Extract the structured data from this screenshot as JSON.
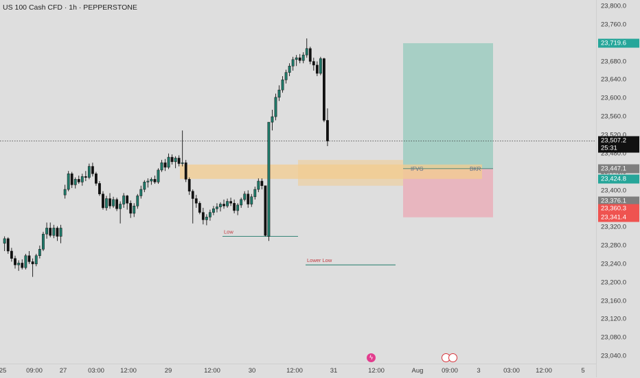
{
  "header": {
    "title": "US 100 Cash CFD · 1h · PEPPERSTONE"
  },
  "price_scale": {
    "ticks": [
      "23,800.0",
      "23,760.0",
      "23,720.0",
      "23,680.0",
      "23,640.0",
      "23,600.0",
      "23,560.0",
      "23,520.0",
      "23,480.0",
      "23,440.0",
      "23,400.0",
      "23,360.0",
      "23,320.0",
      "23,280.0",
      "23,240.0",
      "23,200.0",
      "23,160.0",
      "23,120.0",
      "23,080.0",
      "23,040.0"
    ],
    "badges": {
      "target": "23,719.6",
      "current_price": "23,507.2",
      "countdown": "25:31",
      "level_gray_1": "23,447.1",
      "level_green": "23,424.8",
      "level_gray_2": "23,376.1",
      "level_red_1": "23,360.3",
      "level_red_2": "23,341.4"
    }
  },
  "time_scale": {
    "ticks": [
      "25",
      "09:00",
      "27",
      "03:00",
      "12:00",
      "29",
      "12:00",
      "30",
      "12:00",
      "31",
      "12:00",
      "Aug",
      "09:00",
      "3",
      "03:00",
      "12:00",
      "5"
    ]
  },
  "annotations": {
    "ifvg": "IFVG",
    "bkr": "BKR",
    "low": "Low",
    "lower_low": "Lower Low"
  },
  "colors": {
    "bull": "#1f7a6a",
    "bear": "#111111",
    "target_zone": "#a7cfc5",
    "stop_zone": "#e8b6bf",
    "fvg_zone": "#f3cc8f",
    "badge_green": "#26a69a",
    "badge_red": "#ef5350",
    "badge_gray": "#7e7e7e",
    "badge_dark": "#111111"
  },
  "events": [
    "lightning-icon",
    "us-flag-icon"
  ],
  "chart_data": {
    "type": "candlestick",
    "ylim": [
      23020,
      23810
    ],
    "last_price": 23507.2,
    "candles": [
      {
        "o": 23285,
        "h": 23300,
        "l": 23268,
        "c": 23295
      },
      {
        "o": 23295,
        "h": 23298,
        "l": 23262,
        "c": 23268
      },
      {
        "o": 23268,
        "h": 23275,
        "l": 23245,
        "c": 23252
      },
      {
        "o": 23252,
        "h": 23258,
        "l": 23230,
        "c": 23238
      },
      {
        "o": 23238,
        "h": 23248,
        "l": 23225,
        "c": 23242
      },
      {
        "o": 23242,
        "h": 23250,
        "l": 23228,
        "c": 23232
      },
      {
        "o": 23232,
        "h": 23262,
        "l": 23228,
        "c": 23258
      },
      {
        "o": 23258,
        "h": 23268,
        "l": 23240,
        "c": 23245
      },
      {
        "o": 23245,
        "h": 23252,
        "l": 23212,
        "c": 23240
      },
      {
        "o": 23240,
        "h": 23262,
        "l": 23235,
        "c": 23258
      },
      {
        "o": 23258,
        "h": 23280,
        "l": 23252,
        "c": 23272
      },
      {
        "o": 23272,
        "h": 23310,
        "l": 23268,
        "c": 23305
      },
      {
        "o": 23305,
        "h": 23330,
        "l": 23295,
        "c": 23318
      },
      {
        "o": 23318,
        "h": 23330,
        "l": 23298,
        "c": 23302
      },
      {
        "o": 23302,
        "h": 23325,
        "l": 23296,
        "c": 23318
      },
      {
        "o": 23318,
        "h": 23322,
        "l": 23290,
        "c": 23300
      },
      {
        "o": 23300,
        "h": 23325,
        "l": 23285,
        "c": 23318
      },
      {
        "o": 23390,
        "h": 23412,
        "l": 23382,
        "c": 23402
      },
      {
        "o": 23402,
        "h": 23442,
        "l": 23398,
        "c": 23436
      },
      {
        "o": 23436,
        "h": 23440,
        "l": 23405,
        "c": 23412
      },
      {
        "o": 23412,
        "h": 23428,
        "l": 23404,
        "c": 23424
      },
      {
        "o": 23424,
        "h": 23432,
        "l": 23414,
        "c": 23418
      },
      {
        "o": 23418,
        "h": 23436,
        "l": 23410,
        "c": 23430
      },
      {
        "o": 23430,
        "h": 23442,
        "l": 23420,
        "c": 23428
      },
      {
        "o": 23428,
        "h": 23458,
        "l": 23424,
        "c": 23452
      },
      {
        "o": 23452,
        "h": 23460,
        "l": 23430,
        "c": 23436
      },
      {
        "o": 23436,
        "h": 23440,
        "l": 23410,
        "c": 23415
      },
      {
        "o": 23415,
        "h": 23420,
        "l": 23388,
        "c": 23392
      },
      {
        "o": 23392,
        "h": 23398,
        "l": 23358,
        "c": 23362
      },
      {
        "o": 23362,
        "h": 23388,
        "l": 23356,
        "c": 23382
      },
      {
        "o": 23382,
        "h": 23394,
        "l": 23360,
        "c": 23366
      },
      {
        "o": 23366,
        "h": 23386,
        "l": 23362,
        "c": 23380
      },
      {
        "o": 23380,
        "h": 23384,
        "l": 23355,
        "c": 23360
      },
      {
        "o": 23360,
        "h": 23376,
        "l": 23328,
        "c": 23370
      },
      {
        "o": 23370,
        "h": 23394,
        "l": 23362,
        "c": 23388
      },
      {
        "o": 23388,
        "h": 23390,
        "l": 23358,
        "c": 23372
      },
      {
        "o": 23372,
        "h": 23378,
        "l": 23340,
        "c": 23350
      },
      {
        "o": 23350,
        "h": 23372,
        "l": 23342,
        "c": 23366
      },
      {
        "o": 23366,
        "h": 23392,
        "l": 23360,
        "c": 23388
      },
      {
        "o": 23388,
        "h": 23410,
        "l": 23382,
        "c": 23402
      },
      {
        "o": 23402,
        "h": 23422,
        "l": 23396,
        "c": 23418
      },
      {
        "o": 23418,
        "h": 23426,
        "l": 23406,
        "c": 23420
      },
      {
        "o": 23420,
        "h": 23428,
        "l": 23412,
        "c": 23424
      },
      {
        "o": 23424,
        "h": 23432,
        "l": 23414,
        "c": 23418
      },
      {
        "o": 23418,
        "h": 23448,
        "l": 23414,
        "c": 23444
      },
      {
        "o": 23444,
        "h": 23466,
        "l": 23440,
        "c": 23460
      },
      {
        "o": 23460,
        "h": 23468,
        "l": 23442,
        "c": 23450
      },
      {
        "o": 23450,
        "h": 23480,
        "l": 23446,
        "c": 23472
      },
      {
        "o": 23472,
        "h": 23478,
        "l": 23456,
        "c": 23462
      },
      {
        "o": 23462,
        "h": 23474,
        "l": 23448,
        "c": 23470
      },
      {
        "o": 23470,
        "h": 23476,
        "l": 23452,
        "c": 23458
      },
      {
        "o": 23458,
        "h": 23530,
        "l": 23452,
        "c": 23460
      },
      {
        "o": 23460,
        "h": 23466,
        "l": 23418,
        "c": 23424
      },
      {
        "o": 23424,
        "h": 23428,
        "l": 23390,
        "c": 23398
      },
      {
        "o": 23398,
        "h": 23402,
        "l": 23328,
        "c": 23382
      },
      {
        "o": 23382,
        "h": 23390,
        "l": 23362,
        "c": 23372
      },
      {
        "o": 23372,
        "h": 23376,
        "l": 23348,
        "c": 23352
      },
      {
        "o": 23352,
        "h": 23362,
        "l": 23326,
        "c": 23336
      },
      {
        "o": 23336,
        "h": 23348,
        "l": 23324,
        "c": 23342
      },
      {
        "o": 23342,
        "h": 23358,
        "l": 23334,
        "c": 23352
      },
      {
        "o": 23352,
        "h": 23366,
        "l": 23346,
        "c": 23360
      },
      {
        "o": 23360,
        "h": 23372,
        "l": 23352,
        "c": 23364
      },
      {
        "o": 23364,
        "h": 23374,
        "l": 23354,
        "c": 23370
      },
      {
        "o": 23370,
        "h": 23380,
        "l": 23360,
        "c": 23366
      },
      {
        "o": 23366,
        "h": 23382,
        "l": 23362,
        "c": 23376
      },
      {
        "o": 23376,
        "h": 23384,
        "l": 23366,
        "c": 23372
      },
      {
        "o": 23372,
        "h": 23380,
        "l": 23350,
        "c": 23356
      },
      {
        "o": 23356,
        "h": 23372,
        "l": 23346,
        "c": 23368
      },
      {
        "o": 23368,
        "h": 23384,
        "l": 23362,
        "c": 23380
      },
      {
        "o": 23380,
        "h": 23398,
        "l": 23376,
        "c": 23392
      },
      {
        "o": 23392,
        "h": 23400,
        "l": 23362,
        "c": 23370
      },
      {
        "o": 23370,
        "h": 23392,
        "l": 23364,
        "c": 23386
      },
      {
        "o": 23386,
        "h": 23408,
        "l": 23380,
        "c": 23402
      },
      {
        "o": 23402,
        "h": 23426,
        "l": 23396,
        "c": 23420
      },
      {
        "o": 23420,
        "h": 23426,
        "l": 23402,
        "c": 23410
      },
      {
        "o": 23410,
        "h": 23404,
        "l": 23300,
        "c": 23302
      },
      {
        "o": 23300,
        "h": 23548,
        "l": 23290,
        "c": 23548
      },
      {
        "o": 23548,
        "h": 23575,
        "l": 23530,
        "c": 23560
      },
      {
        "o": 23560,
        "h": 23610,
        "l": 23552,
        "c": 23602
      },
      {
        "o": 23602,
        "h": 23628,
        "l": 23594,
        "c": 23618
      },
      {
        "o": 23618,
        "h": 23648,
        "l": 23612,
        "c": 23640
      },
      {
        "o": 23640,
        "h": 23662,
        "l": 23632,
        "c": 23656
      },
      {
        "o": 23656,
        "h": 23676,
        "l": 23648,
        "c": 23670
      },
      {
        "o": 23670,
        "h": 23690,
        "l": 23660,
        "c": 23684
      },
      {
        "o": 23684,
        "h": 23694,
        "l": 23670,
        "c": 23688
      },
      {
        "o": 23688,
        "h": 23696,
        "l": 23676,
        "c": 23682
      },
      {
        "o": 23682,
        "h": 23700,
        "l": 23676,
        "c": 23694
      },
      {
        "o": 23694,
        "h": 23730,
        "l": 23688,
        "c": 23708
      },
      {
        "o": 23708,
        "h": 23712,
        "l": 23674,
        "c": 23680
      },
      {
        "o": 23680,
        "h": 23688,
        "l": 23660,
        "c": 23672
      },
      {
        "o": 23672,
        "h": 23680,
        "l": 23648,
        "c": 23654
      },
      {
        "o": 23654,
        "h": 23690,
        "l": 23650,
        "c": 23686
      },
      {
        "o": 23686,
        "h": 23688,
        "l": 23548,
        "c": 23552
      },
      {
        "o": 23552,
        "h": 23578,
        "l": 23496,
        "c": 23507
      }
    ],
    "zones": {
      "target": {
        "top": 23719.6,
        "bottom": 23447.1
      },
      "stop": {
        "top": 23447.1,
        "bottom": 23341.4
      },
      "fvg": {
        "top": 23456,
        "bottom": 23424.8
      },
      "fvg2": {
        "top": 23466,
        "bottom": 23410
      }
    },
    "lines": {
      "low": 23300,
      "lower_low": 23238,
      "ifvg_level": 23447.1
    }
  }
}
